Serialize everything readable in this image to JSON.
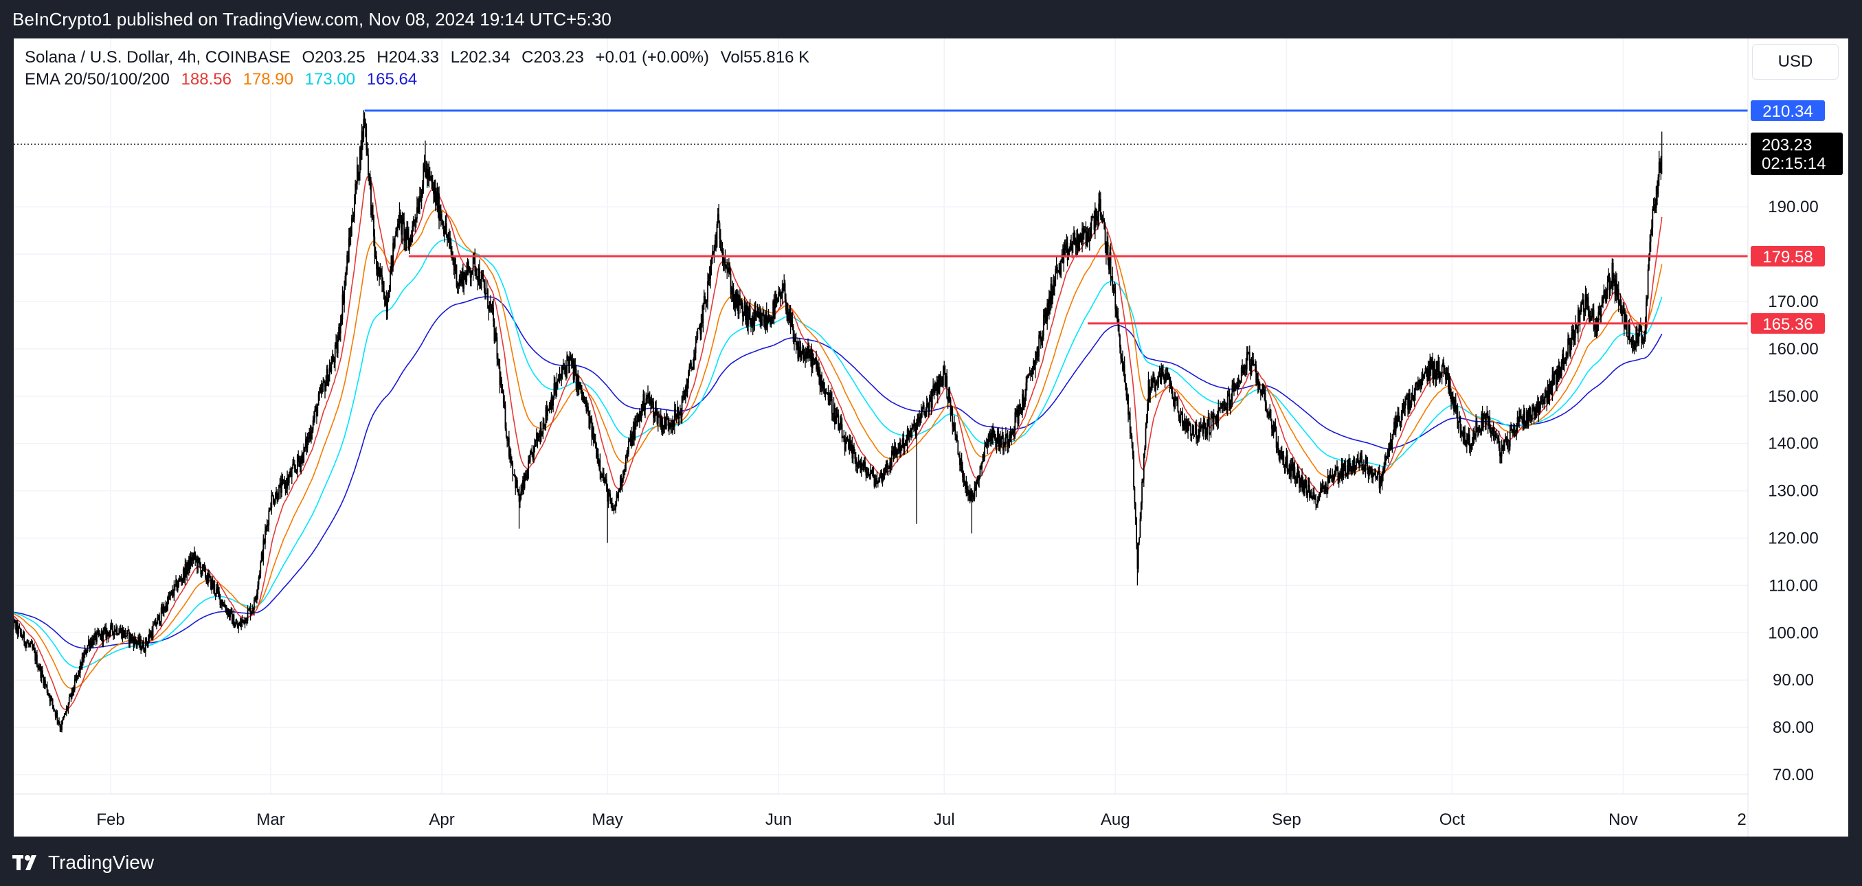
{
  "header": {
    "attribution": "BeInCrypto1 published on TradingView.com, Nov 08, 2024 19:14 UTC+5:30"
  },
  "legend": {
    "symbol": "Solana / U.S. Dollar, 4h, COINBASE",
    "open": "O203.25",
    "high": "H204.33",
    "low": "L202.34",
    "close": "C203.23",
    "change": "+0.01 (+0.00%)",
    "volume": "Vol55.816 K",
    "ema_label": "EMA 20/50/100/200",
    "ema20": "188.56",
    "ema50": "178.90",
    "ema100": "173.00",
    "ema200": "165.64"
  },
  "currency": "USD",
  "footer": {
    "logo_text": "TradingView"
  },
  "colors": {
    "candle": "#000000",
    "ema20": "#e53935",
    "ema50": "#f57c00",
    "ema100": "#00e5ff",
    "ema200": "#1a1ad6",
    "resistance": "#2962ff",
    "support": "#f23645",
    "last_price_bg": "#000000"
  },
  "chart_data": {
    "type": "candlestick",
    "ylim": [
      66,
      216
    ],
    "x_ticks": [
      "Feb",
      "Mar",
      "Apr",
      "May",
      "Jun",
      "Jul",
      "Aug",
      "Sep",
      "Oct",
      "Nov",
      "2"
    ],
    "y_ticks": [
      "210.34",
      "203.23",
      "190.00",
      "179.58",
      "170.00",
      "165.36",
      "160.00",
      "150.00",
      "140.00",
      "130.00",
      "120.00",
      "110.00",
      "100.00",
      "90.00",
      "80.00",
      "70.00"
    ],
    "horizontal_levels": [
      {
        "label": "210.34",
        "value": 210.34,
        "color": "#2962ff",
        "from": "Mar 18"
      },
      {
        "label": "179.58",
        "value": 179.58,
        "color": "#f23645",
        "from": "Mar 26"
      },
      {
        "label": "165.36",
        "value": 165.36,
        "color": "#f23645",
        "from": "Jul 27"
      }
    ],
    "last_price": {
      "price": "203.23",
      "countdown": "02:15:14"
    },
    "price_path": [
      {
        "date": "Jan 13",
        "price": 104
      },
      {
        "date": "Jan 18",
        "price": 96
      },
      {
        "date": "Jan 23",
        "price": 80
      },
      {
        "date": "Jan 28",
        "price": 98
      },
      {
        "date": "Feb 02",
        "price": 101
      },
      {
        "date": "Feb 07",
        "price": 97
      },
      {
        "date": "Feb 12",
        "price": 108
      },
      {
        "date": "Feb 16",
        "price": 116
      },
      {
        "date": "Feb 20",
        "price": 109
      },
      {
        "date": "Feb 24",
        "price": 101
      },
      {
        "date": "Feb 27",
        "price": 106
      },
      {
        "date": "Mar 01",
        "price": 128
      },
      {
        "date": "Mar 04",
        "price": 132
      },
      {
        "date": "Mar 07",
        "price": 138
      },
      {
        "date": "Mar 10",
        "price": 150
      },
      {
        "date": "Mar 13",
        "price": 160
      },
      {
        "date": "Mar 16",
        "price": 190
      },
      {
        "date": "Mar 18",
        "price": 209
      },
      {
        "date": "Mar 20",
        "price": 178
      },
      {
        "date": "Mar 22",
        "price": 170
      },
      {
        "date": "Mar 24",
        "price": 188
      },
      {
        "date": "Mar 26",
        "price": 182
      },
      {
        "date": "Mar 29",
        "price": 198
      },
      {
        "date": "Apr 01",
        "price": 188
      },
      {
        "date": "Apr 04",
        "price": 174
      },
      {
        "date": "Apr 07",
        "price": 178
      },
      {
        "date": "Apr 10",
        "price": 168
      },
      {
        "date": "Apr 13",
        "price": 140
      },
      {
        "date": "Apr 15",
        "price": 128
      },
      {
        "date": "Apr 18",
        "price": 140
      },
      {
        "date": "Apr 21",
        "price": 150
      },
      {
        "date": "Apr 24",
        "price": 158
      },
      {
        "date": "Apr 27",
        "price": 148
      },
      {
        "date": "Apr 30",
        "price": 134
      },
      {
        "date": "May 02",
        "price": 125
      },
      {
        "date": "May 05",
        "price": 140
      },
      {
        "date": "May 08",
        "price": 150
      },
      {
        "date": "May 11",
        "price": 144
      },
      {
        "date": "May 14",
        "price": 146
      },
      {
        "date": "May 17",
        "price": 160
      },
      {
        "date": "May 19",
        "price": 172
      },
      {
        "date": "May 21",
        "price": 186
      },
      {
        "date": "May 24",
        "price": 170
      },
      {
        "date": "May 27",
        "price": 166
      },
      {
        "date": "May 30",
        "price": 166
      },
      {
        "date": "Jun 02",
        "price": 172
      },
      {
        "date": "Jun 04",
        "price": 160
      },
      {
        "date": "Jun 07",
        "price": 158
      },
      {
        "date": "Jun 10",
        "price": 150
      },
      {
        "date": "Jun 13",
        "price": 140
      },
      {
        "date": "Jun 16",
        "price": 135
      },
      {
        "date": "Jun 19",
        "price": 132
      },
      {
        "date": "Jun 22",
        "price": 138
      },
      {
        "date": "Jun 25",
        "price": 142
      },
      {
        "date": "Jun 28",
        "price": 148
      },
      {
        "date": "Jul 01",
        "price": 155
      },
      {
        "date": "Jul 04",
        "price": 135
      },
      {
        "date": "Jul 06",
        "price": 128
      },
      {
        "date": "Jul 09",
        "price": 142
      },
      {
        "date": "Jul 12",
        "price": 140
      },
      {
        "date": "Jul 15",
        "price": 148
      },
      {
        "date": "Jul 18",
        "price": 160
      },
      {
        "date": "Jul 21",
        "price": 175
      },
      {
        "date": "Jul 24",
        "price": 182
      },
      {
        "date": "Jul 27",
        "price": 184
      },
      {
        "date": "Jul 29",
        "price": 190
      },
      {
        "date": "Jul 31",
        "price": 178
      },
      {
        "date": "Aug 02",
        "price": 160
      },
      {
        "date": "Aug 04",
        "price": 140
      },
      {
        "date": "Aug 05",
        "price": 115
      },
      {
        "date": "Aug 07",
        "price": 152
      },
      {
        "date": "Aug 10",
        "price": 155
      },
      {
        "date": "Aug 13",
        "price": 145
      },
      {
        "date": "Aug 16",
        "price": 142
      },
      {
        "date": "Aug 19",
        "price": 145
      },
      {
        "date": "Aug 22",
        "price": 150
      },
      {
        "date": "Aug 25",
        "price": 158
      },
      {
        "date": "Aug 28",
        "price": 150
      },
      {
        "date": "Aug 31",
        "price": 137
      },
      {
        "date": "Sep 03",
        "price": 133
      },
      {
        "date": "Sep 06",
        "price": 128
      },
      {
        "date": "Sep 09",
        "price": 133
      },
      {
        "date": "Sep 12",
        "price": 135
      },
      {
        "date": "Sep 15",
        "price": 136
      },
      {
        "date": "Sep 18",
        "price": 132
      },
      {
        "date": "Sep 21",
        "price": 145
      },
      {
        "date": "Sep 24",
        "price": 150
      },
      {
        "date": "Sep 27",
        "price": 156
      },
      {
        "date": "Sep 30",
        "price": 155
      },
      {
        "date": "Oct 02",
        "price": 145
      },
      {
        "date": "Oct 04",
        "price": 140
      },
      {
        "date": "Oct 07",
        "price": 146
      },
      {
        "date": "Oct 10",
        "price": 138
      },
      {
        "date": "Oct 13",
        "price": 145
      },
      {
        "date": "Oct 16",
        "price": 147
      },
      {
        "date": "Oct 19",
        "price": 152
      },
      {
        "date": "Oct 22",
        "price": 160
      },
      {
        "date": "Oct 25",
        "price": 170
      },
      {
        "date": "Oct 27",
        "price": 165
      },
      {
        "date": "Oct 30",
        "price": 176
      },
      {
        "date": "Nov 01",
        "price": 166
      },
      {
        "date": "Nov 03",
        "price": 162
      },
      {
        "date": "Nov 05",
        "price": 164
      },
      {
        "date": "Nov 06",
        "price": 185
      },
      {
        "date": "Nov 07",
        "price": 192
      },
      {
        "date": "Nov 08",
        "price": 203.23
      }
    ]
  }
}
